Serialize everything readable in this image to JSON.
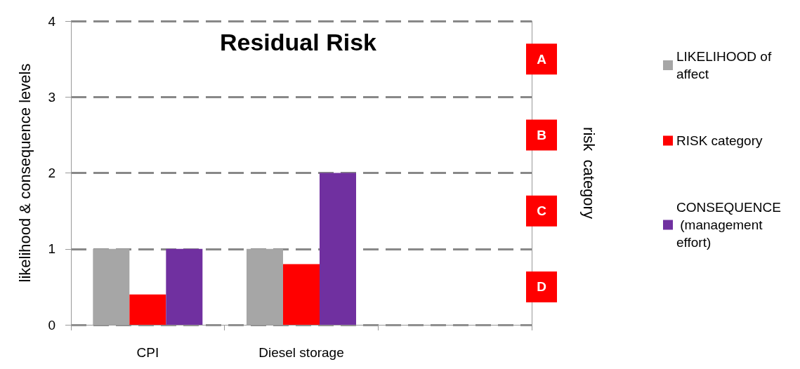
{
  "chart_data": {
    "type": "bar",
    "title": "Residual Risk",
    "ylabel": "likelihood & consequence levels",
    "y2label": "risk  category",
    "categories": [
      "CPI",
      "Diesel storage",
      null
    ],
    "series": [
      {
        "name": "LIKELIHOOD of affect",
        "color": "#a6a6a6",
        "values": [
          1,
          1,
          null
        ]
      },
      {
        "name": "RISK category",
        "color": "#ff0000",
        "values": [
          0.4,
          0.8,
          null
        ]
      },
      {
        "name": "CONSEQUENCE (management effort)",
        "color": "#7030a0",
        "values": [
          1,
          2,
          null
        ]
      }
    ],
    "ylim": [
      0,
      4
    ],
    "yticks": [
      0,
      1,
      2,
      3,
      4
    ],
    "y2_categories": [
      "A",
      "B",
      "C",
      "D"
    ],
    "grid": "y",
    "legend": "right"
  }
}
